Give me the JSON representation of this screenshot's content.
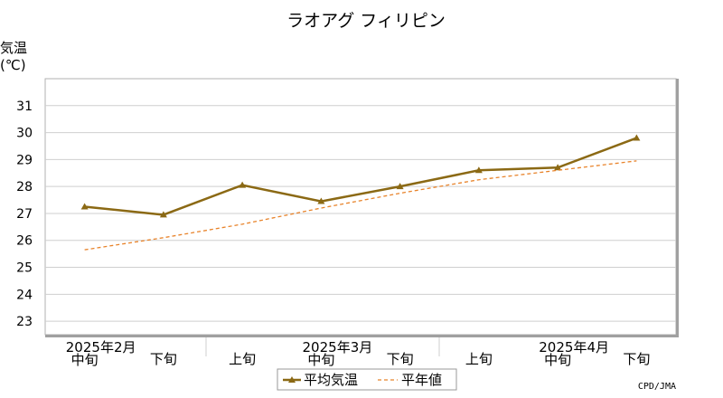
{
  "chart_data": {
    "type": "line",
    "title": "ラオアグ フィリピン",
    "ylabel": "気温",
    "yunit": "(℃)",
    "ylim": [
      22.5,
      32
    ],
    "yticks": [
      23,
      24,
      25,
      26,
      27,
      28,
      29,
      30,
      31
    ],
    "grid": true,
    "categories": [
      {
        "period": "中旬",
        "month": "2025年2月"
      },
      {
        "period": "下旬",
        "month": ""
      },
      {
        "period": "上旬",
        "month": ""
      },
      {
        "period": "中旬",
        "month": "2025年3月"
      },
      {
        "period": "下旬",
        "month": ""
      },
      {
        "period": "上旬",
        "month": ""
      },
      {
        "period": "中旬",
        "month": "2025年4月"
      },
      {
        "period": "下旬",
        "month": ""
      }
    ],
    "series": [
      {
        "name": "平均気温",
        "values": [
          27.25,
          26.95,
          28.05,
          27.45,
          28.0,
          28.6,
          28.7,
          29.8
        ],
        "color": "#8b6914",
        "style": "solid-marker"
      },
      {
        "name": "平年値",
        "values": [
          25.65,
          26.1,
          26.6,
          27.2,
          27.75,
          28.25,
          28.6,
          28.95
        ],
        "color": "#e8832a",
        "style": "dashed"
      }
    ],
    "legend": "bottom-center",
    "credit": "CPD/JMA"
  }
}
